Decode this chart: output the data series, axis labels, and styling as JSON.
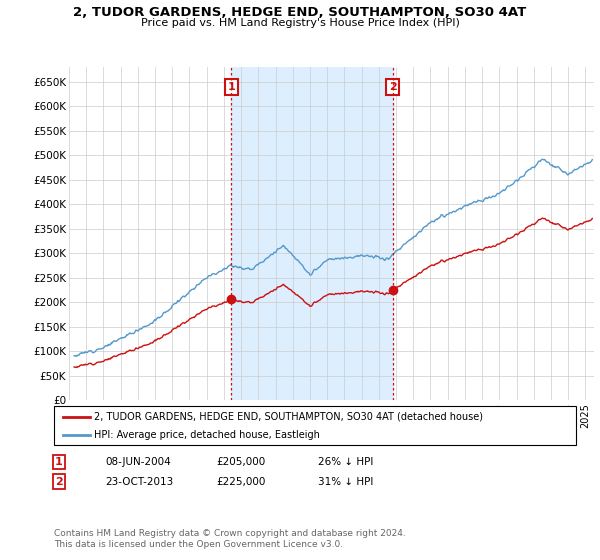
{
  "title": "2, TUDOR GARDENS, HEDGE END, SOUTHAMPTON, SO30 4AT",
  "subtitle": "Price paid vs. HM Land Registry's House Price Index (HPI)",
  "ylabel_ticks": [
    "£0",
    "£50K",
    "£100K",
    "£150K",
    "£200K",
    "£250K",
    "£300K",
    "£350K",
    "£400K",
    "£450K",
    "£500K",
    "£550K",
    "£600K",
    "£650K"
  ],
  "ytick_values": [
    0,
    50000,
    100000,
    150000,
    200000,
    250000,
    300000,
    350000,
    400000,
    450000,
    500000,
    550000,
    600000,
    650000
  ],
  "ylim": [
    0,
    680000
  ],
  "xlim_start": 1995.3,
  "xlim_end": 2025.5,
  "sale1_date": 2004.44,
  "sale1_price": 205000,
  "sale1_label": "1",
  "sale2_date": 2013.81,
  "sale2_price": 225000,
  "sale2_label": "2",
  "legend_line1": "2, TUDOR GARDENS, HEDGE END, SOUTHAMPTON, SO30 4AT (detached house)",
  "legend_line2": "HPI: Average price, detached house, Eastleigh",
  "table_row1": [
    "1",
    "08-JUN-2004",
    "£205,000",
    "26% ↓ HPI"
  ],
  "table_row2": [
    "2",
    "23-OCT-2013",
    "£225,000",
    "31% ↓ HPI"
  ],
  "footer": "Contains HM Land Registry data © Crown copyright and database right 2024.\nThis data is licensed under the Open Government Licence v3.0.",
  "hpi_color": "#5599cc",
  "price_color": "#cc1111",
  "vline_color": "#cc1111",
  "shade_color": "#ddeeff",
  "background_color": "#ffffff",
  "grid_color": "#cccccc",
  "marker_top_y": 640000
}
